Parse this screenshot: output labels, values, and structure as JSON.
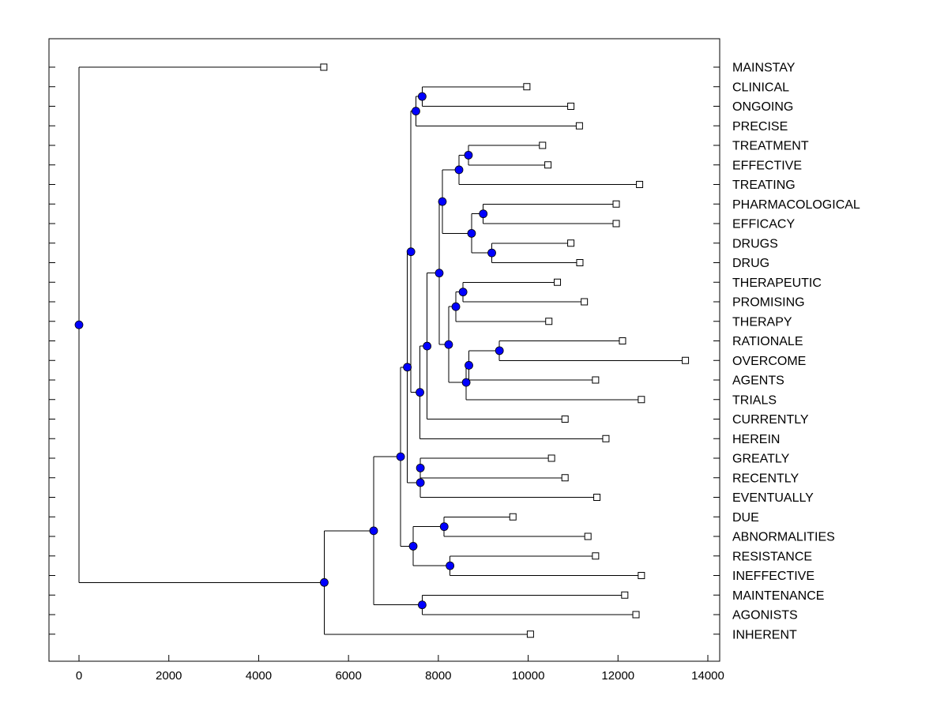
{
  "chart_data": {
    "type": "dendrogram",
    "title": "",
    "xlabel": "",
    "ylabel": "",
    "xlim": [
      -650,
      14200
    ],
    "x_ticks": [
      0,
      2000,
      4000,
      6000,
      8000,
      10000,
      12000,
      14000
    ],
    "leaves": [
      {
        "label": "MAINSTAY",
        "x": 5450
      },
      {
        "label": "CLINICAL",
        "x": 9970
      },
      {
        "label": "ONGOING",
        "x": 10950
      },
      {
        "label": "PRECISE",
        "x": 11140
      },
      {
        "label": "TREATMENT",
        "x": 10320
      },
      {
        "label": "EFFECTIVE",
        "x": 10440
      },
      {
        "label": "TREATING",
        "x": 12480
      },
      {
        "label": "PHARMACOLOGICAL",
        "x": 11960
      },
      {
        "label": "EFFICACY",
        "x": 11960
      },
      {
        "label": "DRUGS",
        "x": 10950
      },
      {
        "label": "DRUG",
        "x": 11150
      },
      {
        "label": "THERAPEUTIC",
        "x": 10650
      },
      {
        "label": "PROMISING",
        "x": 11250
      },
      {
        "label": "THERAPY",
        "x": 10460
      },
      {
        "label": "RATIONALE",
        "x": 12100
      },
      {
        "label": "OVERCOME",
        "x": 13500
      },
      {
        "label": "AGENTS",
        "x": 11500
      },
      {
        "label": "TRIALS",
        "x": 12520
      },
      {
        "label": "CURRENTLY",
        "x": 10820
      },
      {
        "label": "HEREIN",
        "x": 11730
      },
      {
        "label": "GREATLY",
        "x": 10520
      },
      {
        "label": "RECENTLY",
        "x": 10820
      },
      {
        "label": "EVENTUALLY",
        "x": 11530
      },
      {
        "label": "DUE",
        "x": 9660
      },
      {
        "label": "ABNORMALITIES",
        "x": 11330
      },
      {
        "label": "RESISTANCE",
        "x": 11500
      },
      {
        "label": "INEFFECTIVE",
        "x": 12520
      },
      {
        "label": "MAINTENANCE",
        "x": 12150
      },
      {
        "label": "AGONISTS",
        "x": 12400
      },
      {
        "label": "INHERENT",
        "x": 10050
      }
    ],
    "merges": [
      {
        "id": "n1",
        "x": 7640,
        "children": [
          1,
          2
        ]
      },
      {
        "id": "n2",
        "x": 7500,
        "children": [
          "n1",
          3
        ]
      },
      {
        "id": "n3",
        "x": 8670,
        "children": [
          4,
          5
        ]
      },
      {
        "id": "n4",
        "x": 8460,
        "children": [
          "n3",
          6
        ]
      },
      {
        "id": "n5",
        "x": 9000,
        "children": [
          7,
          8
        ]
      },
      {
        "id": "n6",
        "x": 9190,
        "children": [
          9,
          10
        ]
      },
      {
        "id": "n7",
        "x": 8740,
        "children": [
          "n5",
          "n6"
        ]
      },
      {
        "id": "n8",
        "x": 8090,
        "children": [
          "n4",
          "n7"
        ]
      },
      {
        "id": "n9",
        "x": 8550,
        "children": [
          11,
          12
        ]
      },
      {
        "id": "n10",
        "x": 8390,
        "children": [
          "n9",
          13
        ]
      },
      {
        "id": "n11",
        "x": 9360,
        "children": [
          14,
          15
        ]
      },
      {
        "id": "n12",
        "x": 8680,
        "children": [
          "n11",
          16
        ]
      },
      {
        "id": "n13",
        "x": 8620,
        "children": [
          "n12",
          17
        ]
      },
      {
        "id": "n14",
        "x": 8230,
        "children": [
          "n10",
          "n13"
        ]
      },
      {
        "id": "n15",
        "x": 8020,
        "children": [
          "n8",
          "n14"
        ]
      },
      {
        "id": "n16",
        "x": 7750,
        "children": [
          "n15",
          18
        ]
      },
      {
        "id": "n17",
        "x": 7590,
        "children": [
          "n16",
          19
        ]
      },
      {
        "id": "n18",
        "x": 7390,
        "children": [
          "n2",
          "n17"
        ]
      },
      {
        "id": "n19",
        "x": 7600,
        "children": [
          20,
          21
        ]
      },
      {
        "id": "n20",
        "x": 7600,
        "children": [
          "n19",
          22
        ]
      },
      {
        "id": "n21",
        "x": 7310,
        "children": [
          "n18",
          "n20"
        ]
      },
      {
        "id": "n22",
        "x": 8130,
        "children": [
          23,
          24
        ]
      },
      {
        "id": "n23",
        "x": 8260,
        "children": [
          25,
          26
        ]
      },
      {
        "id": "n24",
        "x": 7440,
        "children": [
          "n22",
          "n23"
        ]
      },
      {
        "id": "n25",
        "x": 7160,
        "children": [
          "n21",
          "n24"
        ]
      },
      {
        "id": "n26",
        "x": 7640,
        "children": [
          27,
          28
        ]
      },
      {
        "id": "n27",
        "x": 6560,
        "children": [
          "n25",
          "n26"
        ]
      },
      {
        "id": "n28",
        "x": 5460,
        "children": [
          "n27",
          29
        ]
      },
      {
        "id": "n29",
        "x": 0,
        "children": [
          0,
          "n28"
        ]
      }
    ],
    "colors": {
      "node_fill": "#0000ff",
      "leaf_fill": "#ffffff",
      "line": "#000000",
      "frame": "#000000"
    },
    "grid": false
  }
}
